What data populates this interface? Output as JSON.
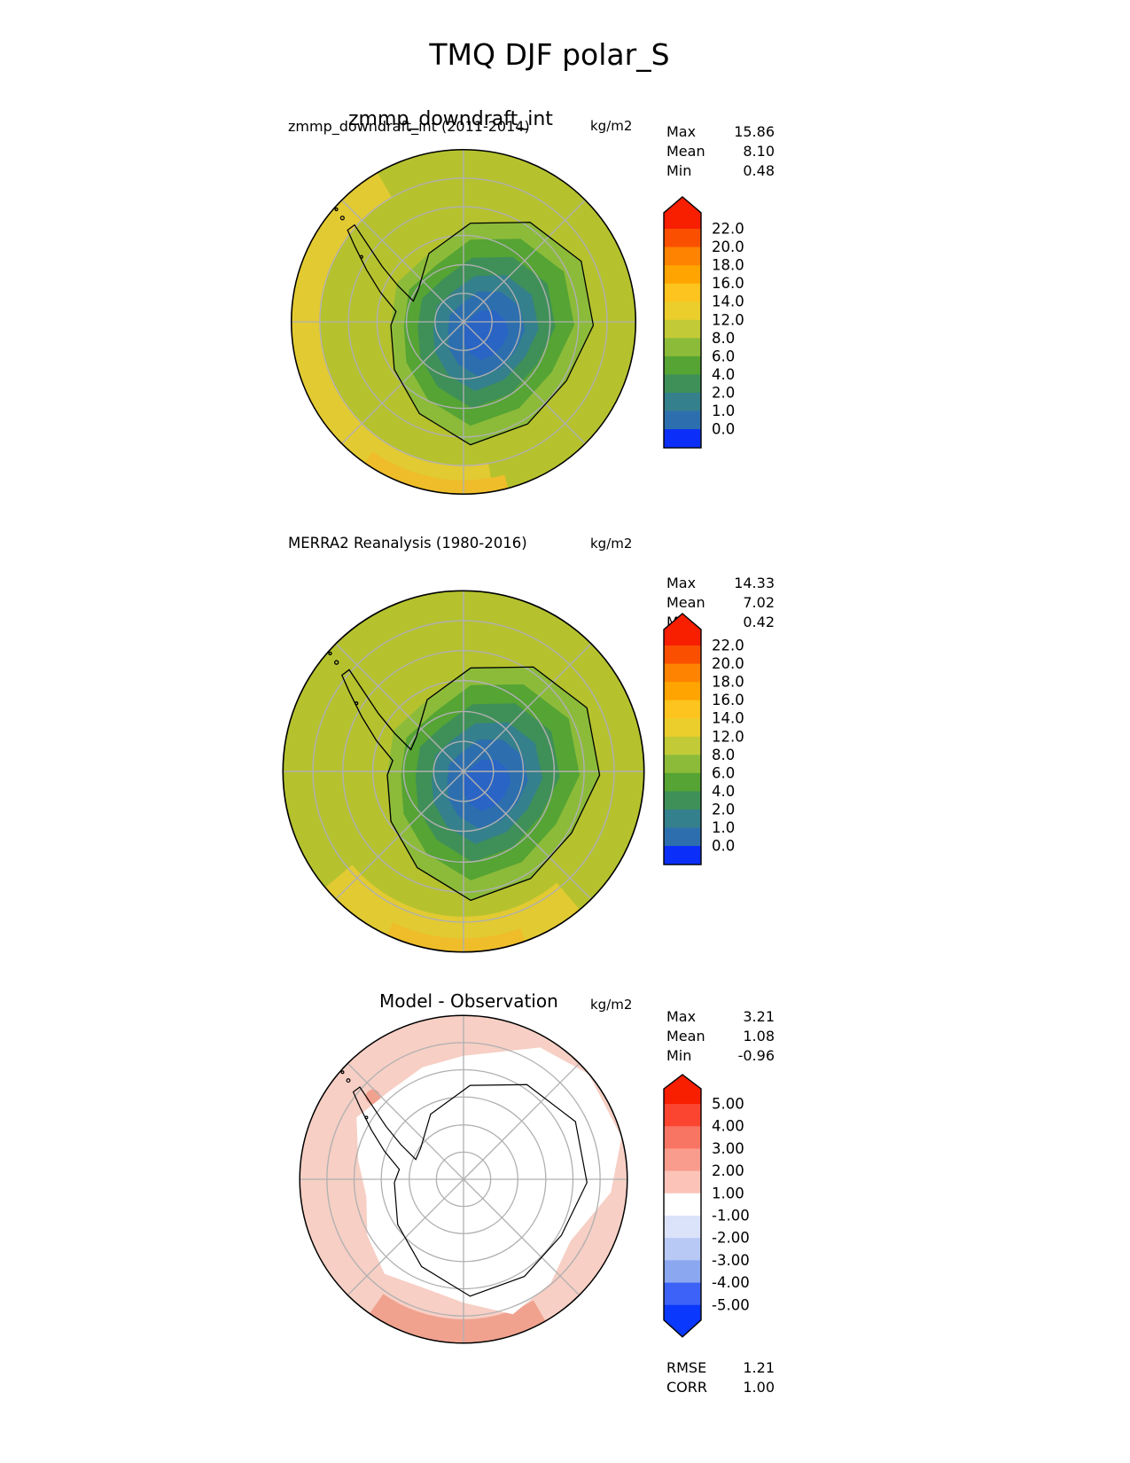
{
  "page_title": "TMQ DJF polar_S",
  "panels": [
    {
      "name": "model",
      "title_small": "zmmp_downdraft_int (2011-2014)",
      "title_large": "zmmp_downdraft_int",
      "units": "kg/m2",
      "stats": [
        {
          "label": "Max",
          "value": "15.86"
        },
        {
          "label": "Mean",
          "value": "8.10"
        },
        {
          "label": "Min",
          "value": "0.48"
        }
      ],
      "colorbar": {
        "ticks": [
          "22.0",
          "20.0",
          "18.0",
          "16.0",
          "14.0",
          "12.0",
          "8.0",
          "6.0",
          "4.0",
          "2.0",
          "1.0",
          "0.0"
        ],
        "colors": [
          "#f81e00",
          "#fb4f00",
          "#fe8300",
          "#ffa400",
          "#fdc31f",
          "#ebcd2c",
          "#c3ca37",
          "#8cbb3a",
          "#55a434",
          "#3f9058",
          "#34808c",
          "#2d6fae",
          "#0b2ff9"
        ]
      },
      "map": {
        "ocean": "#b5c22e",
        "gold1": "#e2ca32",
        "gold2": "#eebd29",
        "land_outer": "#8cbb3a",
        "land_mid": "#55a434",
        "land_inner": "#3f9058",
        "land_low": "#34808c",
        "ice_blue": "#2d6fae",
        "ice_deep": "#2a64c4",
        "graticule": "#b0b0b0",
        "coast": "#000000"
      }
    },
    {
      "name": "reference",
      "title": "MERRA2 Reanalysis (1980-2016)",
      "units": "kg/m2",
      "stats": [
        {
          "label": "Max",
          "value": "14.33"
        },
        {
          "label": "Mean",
          "value": "7.02"
        },
        {
          "label": "Min",
          "value": "0.42"
        }
      ],
      "colorbar": {
        "ticks": [
          "22.0",
          "20.0",
          "18.0",
          "16.0",
          "14.0",
          "12.0",
          "8.0",
          "6.0",
          "4.0",
          "2.0",
          "1.0",
          "0.0"
        ],
        "colors": [
          "#f81e00",
          "#fb4f00",
          "#fe8300",
          "#ffa400",
          "#fdc31f",
          "#ebcd2c",
          "#c3ca37",
          "#8cbb3a",
          "#55a434",
          "#3f9058",
          "#34808c",
          "#2d6fae",
          "#0b2ff9"
        ]
      },
      "map": {
        "ocean": "#b5c22e",
        "gold1": "#e2ca32",
        "gold2": "#eebd29",
        "land_outer": "#8cbb3a",
        "land_mid": "#55a434",
        "land_inner": "#3f9058",
        "land_low": "#34808c",
        "ice_blue": "#2d6fae",
        "ice_deep": "#2a64c4",
        "graticule": "#b0b0b0",
        "coast": "#000000"
      }
    },
    {
      "name": "difference",
      "title": "Model - Observation",
      "units": "kg/m2",
      "stats": [
        {
          "label": "Max",
          "value": "3.21"
        },
        {
          "label": "Mean",
          "value": "1.08"
        },
        {
          "label": "Min",
          "value": "-0.96"
        }
      ],
      "colorbar": {
        "ticks": [
          "5.00",
          "4.00",
          "3.00",
          "2.00",
          "1.00",
          "-1.00",
          "-2.00",
          "-3.00",
          "-4.00",
          "-5.00"
        ],
        "colors": [
          "#f81e00",
          "#fb4531",
          "#f97563",
          "#fa9c8d",
          "#fcc4b9",
          "#ffffff",
          "#dbe3fa",
          "#b8c9f6",
          "#8aa7f0",
          "#3c62f7",
          "#0b38fd"
        ]
      },
      "metrics": [
        {
          "label": "RMSE",
          "value": "1.21"
        },
        {
          "label": "CORR",
          "value": "1.00"
        }
      ],
      "map": {
        "ocean": "#f7cfc5",
        "anom_deep": "#f0a28f",
        "center": "#ffffff",
        "graticule": "#b0b0b0",
        "coast": "#000000"
      }
    }
  ],
  "chart_data": [
    {
      "type": "heatmap",
      "projection": "south_polar_stereographic",
      "title": "zmmp_downdraft_int (2011-2014)",
      "overlay_title": "zmmp_downdraft_int",
      "variable": "TMQ",
      "season": "DJF",
      "region": "polar_S",
      "units": "kg/m2",
      "stats": {
        "max": 15.86,
        "mean": 8.1,
        "min": 0.48
      },
      "contour_levels": [
        0.0,
        1.0,
        2.0,
        4.0,
        6.0,
        8.0,
        12.0,
        14.0,
        16.0,
        18.0,
        20.0,
        22.0
      ],
      "colormap": "blue-green-yellow-orange-red rainbow",
      "legend_position": "right"
    },
    {
      "type": "heatmap",
      "projection": "south_polar_stereographic",
      "title": "MERRA2 Reanalysis (1980-2016)",
      "variable": "TMQ",
      "season": "DJF",
      "region": "polar_S",
      "units": "kg/m2",
      "stats": {
        "max": 14.33,
        "mean": 7.02,
        "min": 0.42
      },
      "contour_levels": [
        0.0,
        1.0,
        2.0,
        4.0,
        6.0,
        8.0,
        12.0,
        14.0,
        16.0,
        18.0,
        20.0,
        22.0
      ],
      "colormap": "blue-green-yellow-orange-red rainbow",
      "legend_position": "right"
    },
    {
      "type": "heatmap",
      "projection": "south_polar_stereographic",
      "title": "Model - Observation",
      "variable": "TMQ difference",
      "season": "DJF",
      "region": "polar_S",
      "units": "kg/m2",
      "stats": {
        "max": 3.21,
        "mean": 1.08,
        "min": -0.96
      },
      "metrics": {
        "rmse": 1.21,
        "corr": 1.0
      },
      "contour_levels": [
        -5.0,
        -4.0,
        -3.0,
        -2.0,
        -1.0,
        1.0,
        2.0,
        3.0,
        4.0,
        5.0
      ],
      "colormap": "red-white-blue diverging",
      "legend_position": "right"
    }
  ]
}
